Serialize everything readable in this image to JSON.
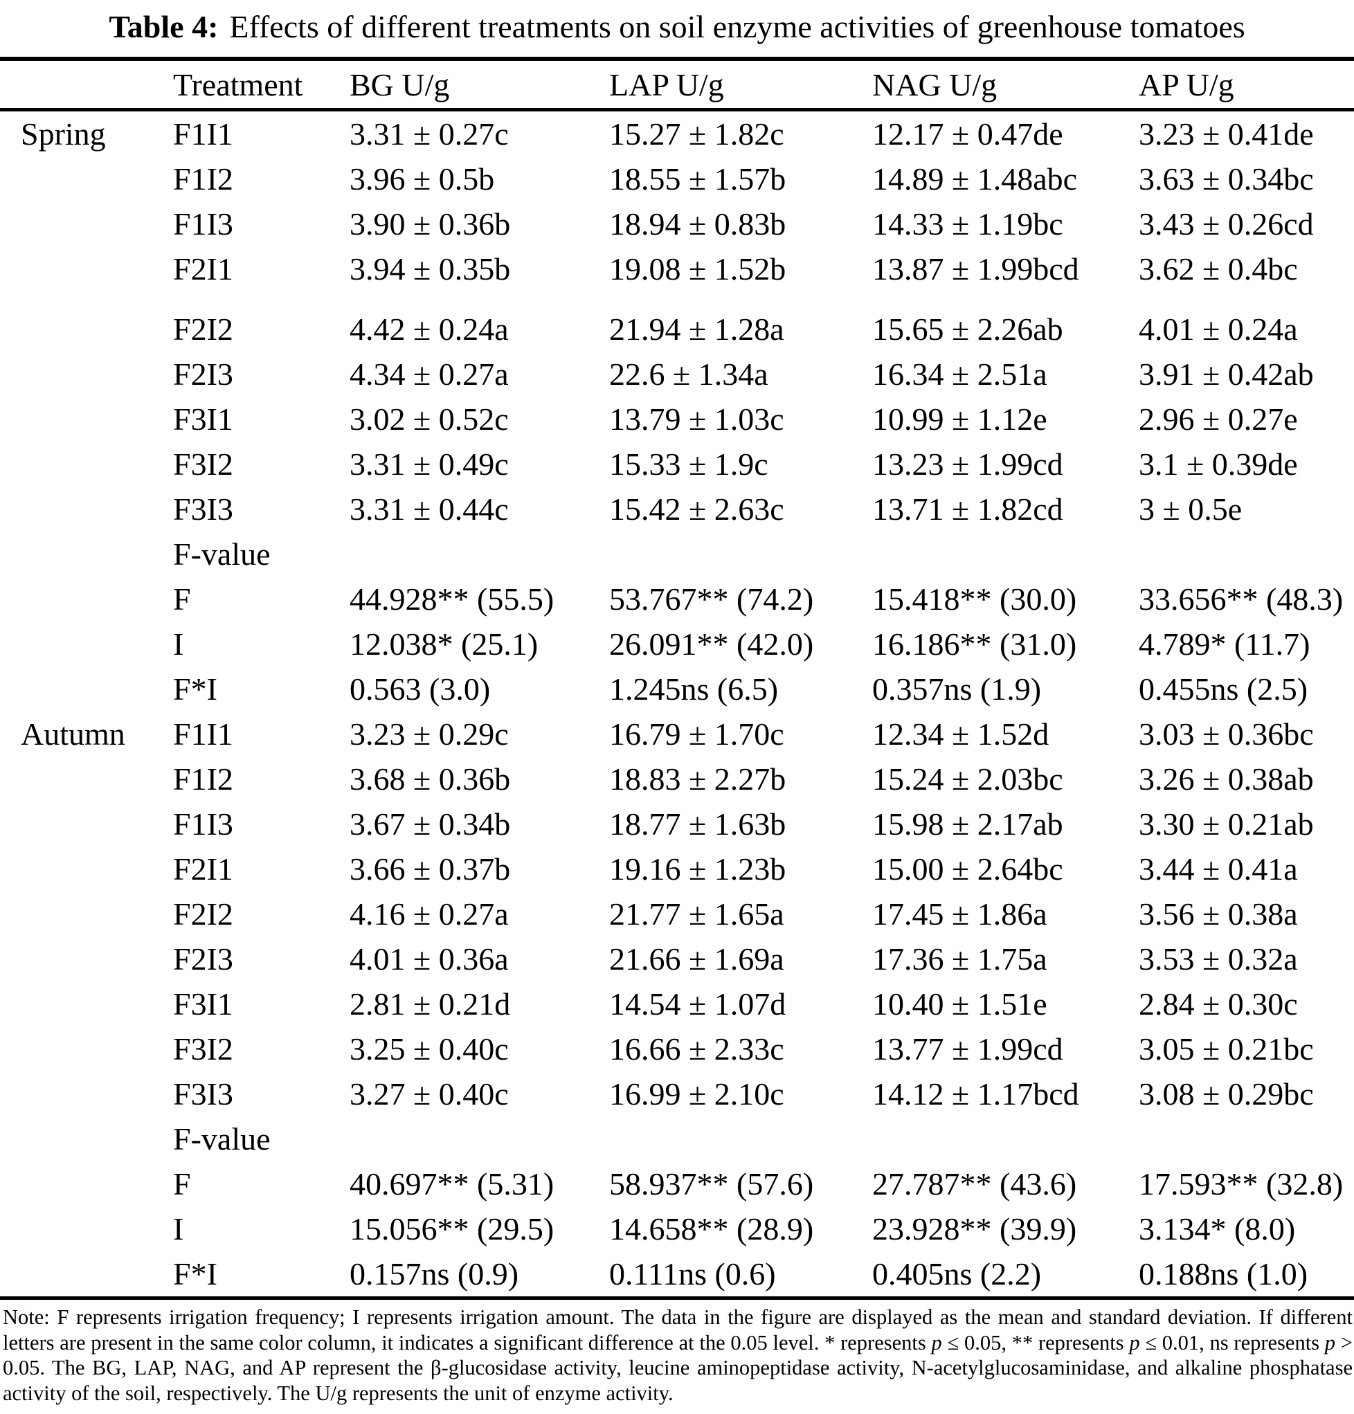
{
  "title": {
    "label": "Table 4:",
    "text": "Effects of different treatments on soil enzyme activities of greenhouse tomatoes"
  },
  "table": {
    "headers": {
      "season": "",
      "treatment": "Treatment",
      "bg": "BG U/g",
      "lap": "LAP U/g",
      "nag": "NAG U/g",
      "ap": "AP U/g"
    },
    "rows": [
      {
        "season": "Spring",
        "treatment": "F1I1",
        "bg": "3.31 ± 0.27c",
        "lap": "15.27 ± 1.82c",
        "nag": "12.17 ± 0.47de",
        "ap": "3.23 ± 0.41de"
      },
      {
        "season": "",
        "treatment": "F1I2",
        "bg": "3.96 ± 0.5b",
        "lap": "18.55 ± 1.57b",
        "nag": "14.89 ± 1.48abc",
        "ap": "3.63 ± 0.34bc"
      },
      {
        "season": "",
        "treatment": "F1I3",
        "bg": "3.90 ± 0.36b",
        "lap": "18.94 ± 0.83b",
        "nag": "14.33 ± 1.19bc",
        "ap": "3.43 ± 0.26cd"
      },
      {
        "season": "",
        "treatment": "F2I1",
        "bg": "3.94 ± 0.35b",
        "lap": "19.08 ± 1.52b",
        "nag": "13.87 ± 1.99bcd",
        "ap": "3.62 ± 0.4bc"
      },
      {
        "season": "",
        "treatment": "F2I2",
        "bg": "4.42 ± 0.24a",
        "lap": "21.94 ± 1.28a",
        "nag": "15.65 ± 2.26ab",
        "ap": "4.01 ± 0.24a"
      },
      {
        "season": "",
        "treatment": "F2I3",
        "bg": "4.34 ± 0.27a",
        "lap": "22.6 ± 1.34a",
        "nag": "16.34 ± 2.51a",
        "ap": "3.91 ± 0.42ab"
      },
      {
        "season": "",
        "treatment": "F3I1",
        "bg": "3.02 ± 0.52c",
        "lap": "13.79 ± 1.03c",
        "nag": "10.99 ± 1.12e",
        "ap": "2.96 ± 0.27e"
      },
      {
        "season": "",
        "treatment": "F3I2",
        "bg": "3.31 ± 0.49c",
        "lap": "15.33 ± 1.9c",
        "nag": "13.23 ± 1.99cd",
        "ap": "3.1 ± 0.39de"
      },
      {
        "season": "",
        "treatment": "F3I3",
        "bg": "3.31 ± 0.44c",
        "lap": "15.42 ± 2.63c",
        "nag": "13.71 ± 1.82cd",
        "ap": "3 ± 0.5e"
      },
      {
        "season": "",
        "treatment": "F-value",
        "bg": "",
        "lap": "",
        "nag": "",
        "ap": ""
      },
      {
        "season": "",
        "treatment": "F",
        "bg": "44.928** (55.5)",
        "lap": "53.767** (74.2)",
        "nag": "15.418** (30.0)",
        "ap": "33.656** (48.3)"
      },
      {
        "season": "",
        "treatment": "I",
        "bg": "12.038* (25.1)",
        "lap": "26.091** (42.0)",
        "nag": "16.186** (31.0)",
        "ap": "4.789* (11.7)"
      },
      {
        "season": "",
        "treatment": "F*I",
        "bg": "0.563 (3.0)",
        "lap": "1.245ns (6.5)",
        "nag": "0.357ns (1.9)",
        "ap": "0.455ns (2.5)"
      },
      {
        "season": "Autumn",
        "treatment": "F1I1",
        "bg": "3.23 ± 0.29c",
        "lap": "16.79 ± 1.70c",
        "nag": "12.34 ± 1.52d",
        "ap": "3.03 ± 0.36bc"
      },
      {
        "season": "",
        "treatment": "F1I2",
        "bg": "3.68 ± 0.36b",
        "lap": "18.83 ± 2.27b",
        "nag": "15.24 ± 2.03bc",
        "ap": "3.26 ± 0.38ab"
      },
      {
        "season": "",
        "treatment": "F1I3",
        "bg": "3.67 ± 0.34b",
        "lap": "18.77 ± 1.63b",
        "nag": "15.98 ± 2.17ab",
        "ap": "3.30 ± 0.21ab"
      },
      {
        "season": "",
        "treatment": "F2I1",
        "bg": "3.66 ± 0.37b",
        "lap": "19.16 ± 1.23b",
        "nag": "15.00 ± 2.64bc",
        "ap": "3.44 ± 0.41a"
      },
      {
        "season": "",
        "treatment": "F2I2",
        "bg": "4.16 ± 0.27a",
        "lap": "21.77 ± 1.65a",
        "nag": "17.45 ± 1.86a",
        "ap": "3.56 ± 0.38a"
      },
      {
        "season": "",
        "treatment": "F2I3",
        "bg": "4.01 ± 0.36a",
        "lap": "21.66 ± 1.69a",
        "nag": "17.36 ± 1.75a",
        "ap": "3.53 ± 0.32a"
      },
      {
        "season": "",
        "treatment": "F3I1",
        "bg": "2.81 ± 0.21d",
        "lap": "14.54 ± 1.07d",
        "nag": "10.40 ± 1.51e",
        "ap": "2.84 ± 0.30c"
      },
      {
        "season": "",
        "treatment": "F3I2",
        "bg": "3.25 ± 0.40c",
        "lap": "16.66 ± 2.33c",
        "nag": "13.77 ± 1.99cd",
        "ap": "3.05 ± 0.21bc"
      },
      {
        "season": "",
        "treatment": "F3I3",
        "bg": "3.27 ± 0.40c",
        "lap": "16.99 ± 2.10c",
        "nag": "14.12 ± 1.17bcd",
        "ap": "3.08 ± 0.29bc"
      },
      {
        "season": "",
        "treatment": "F-value",
        "bg": "",
        "lap": "",
        "nag": "",
        "ap": ""
      },
      {
        "season": "",
        "treatment": "F",
        "bg": "40.697** (5.31)",
        "lap": "58.937** (57.6)",
        "nag": "27.787** (43.6)",
        "ap": "17.593** (32.8)"
      },
      {
        "season": "",
        "treatment": "I",
        "bg": "15.056** (29.5)",
        "lap": "14.658** (28.9)",
        "nag": "23.928** (39.9)",
        "ap": "3.134* (8.0)"
      },
      {
        "season": "",
        "treatment": "F*I",
        "bg": "0.157ns (0.9)",
        "lap": "0.111ns (0.6)",
        "nag": "0.405ns (2.2)",
        "ap": "0.188ns (1.0)"
      }
    ]
  },
  "note": {
    "segments": [
      {
        "text": "Note: F represents irrigation frequency; I represents irrigation amount. The data in the figure are displayed as the mean and standard deviation. If different letters are present in the same color column, it indicates a significant difference at the 0.05 level. * represents ",
        "italic": false
      },
      {
        "text": "p",
        "italic": true
      },
      {
        "text": " ≤ 0.05, ** represents ",
        "italic": false
      },
      {
        "text": "p",
        "italic": true
      },
      {
        "text": " ≤ 0.01, ns represents ",
        "italic": false
      },
      {
        "text": "p",
        "italic": true
      },
      {
        "text": " > 0.05. The BG, LAP, NAG, and AP represent the β-glucosidase activity, leucine aminopeptidase activity, N-acetylglucosaminidase, and alkaline phosphatase activity of the soil, respectively. The U/g represents the unit of enzyme activity.",
        "italic": false
      }
    ]
  }
}
